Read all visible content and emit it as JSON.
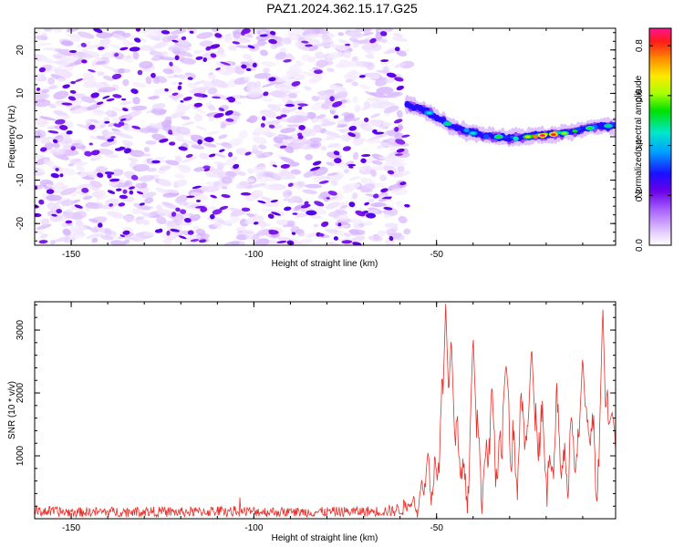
{
  "title": "PAZ1.2024.362.15.17.G25",
  "chart_data": [
    {
      "type": "heatmap",
      "title": "PAZ1.2024.362.15.17.G25",
      "xlabel": "Height of straight line (km)",
      "ylabel": "Frequency (Hz)",
      "xlim": [
        -160,
        -1
      ],
      "ylim": [
        -25,
        25
      ],
      "xticks": [
        "-150",
        "-100",
        "-50"
      ],
      "yticks": [
        "20",
        "10",
        "0",
        "-10",
        "-20"
      ],
      "colorbar": {
        "label": "Normalized spectral amplitude",
        "range": [
          0.0,
          0.87
        ],
        "ticks": [
          "0.0",
          "0.2",
          "0.4",
          "0.6",
          "0.8"
        ]
      },
      "noise_region": {
        "x": [
          -160,
          -58
        ],
        "amplitude_range": [
          0.0,
          0.15
        ]
      },
      "signal_ridge": {
        "x": [
          -58,
          -55,
          -52,
          -49,
          -46,
          -43,
          -40,
          -37,
          -34,
          -31,
          -28,
          -25,
          -22,
          -19,
          -16,
          -13,
          -10,
          -7,
          -4,
          -1
        ],
        "frequency": [
          7.5,
          6.5,
          5.5,
          4.0,
          2.5,
          1.5,
          0.8,
          0.3,
          0.0,
          -0.3,
          -0.2,
          0.0,
          0.3,
          0.5,
          0.8,
          1.2,
          1.8,
          2.2,
          2.5,
          2.5
        ],
        "amplitude": [
          0.25,
          0.3,
          0.35,
          0.28,
          0.3,
          0.35,
          0.3,
          0.35,
          0.3,
          0.4,
          0.45,
          0.6,
          0.8,
          0.75,
          0.5,
          0.45,
          0.4,
          0.35,
          0.3,
          0.35
        ]
      },
      "grid": false
    },
    {
      "type": "line",
      "xlabel": "Height of straight line (km)",
      "ylabel": "SNR (10 * v/v)",
      "xlim": [
        -160,
        -1
      ],
      "ylim": [
        0,
        3450
      ],
      "xticks": [
        "-150",
        "-100",
        "-50"
      ],
      "yticks": [
        "3000",
        "2000",
        "1000"
      ],
      "color": "#e8302a",
      "series_profile": {
        "x": [
          -160,
          -150,
          -140,
          -130,
          -120,
          -110,
          -100,
          -90,
          -80,
          -70,
          -62,
          -58,
          -55,
          -53,
          -51,
          -49,
          -47,
          -45,
          -43,
          -41,
          -39,
          -37,
          -35,
          -33,
          -31,
          -29,
          -27,
          -25,
          -23,
          -21,
          -19,
          -17,
          -15,
          -13,
          -11,
          -9,
          -7,
          -5,
          -4,
          -3,
          -1
        ],
        "snr_level": [
          130,
          110,
          115,
          120,
          110,
          125,
          120,
          110,
          115,
          120,
          130,
          200,
          450,
          700,
          1100,
          1500,
          1800,
          1300,
          1000,
          1200,
          1500,
          1300,
          1600,
          1500,
          1800,
          1700,
          1650,
          1500,
          1600,
          1550,
          1400,
          1500,
          1400,
          1300,
          1450,
          1500,
          1600,
          1350,
          1400,
          1500,
          1300
        ]
      },
      "peaks": [
        {
          "x": -47.5,
          "y": 3420
        },
        {
          "x": -46,
          "y": 2900
        },
        {
          "x": -40,
          "y": 2950
        },
        {
          "x": -31,
          "y": 2470
        },
        {
          "x": -24,
          "y": 2770
        },
        {
          "x": -4.5,
          "y": 3370
        },
        {
          "x": -10,
          "y": 2600
        },
        {
          "x": -2,
          "y": 1700
        }
      ],
      "grid": false
    }
  ]
}
